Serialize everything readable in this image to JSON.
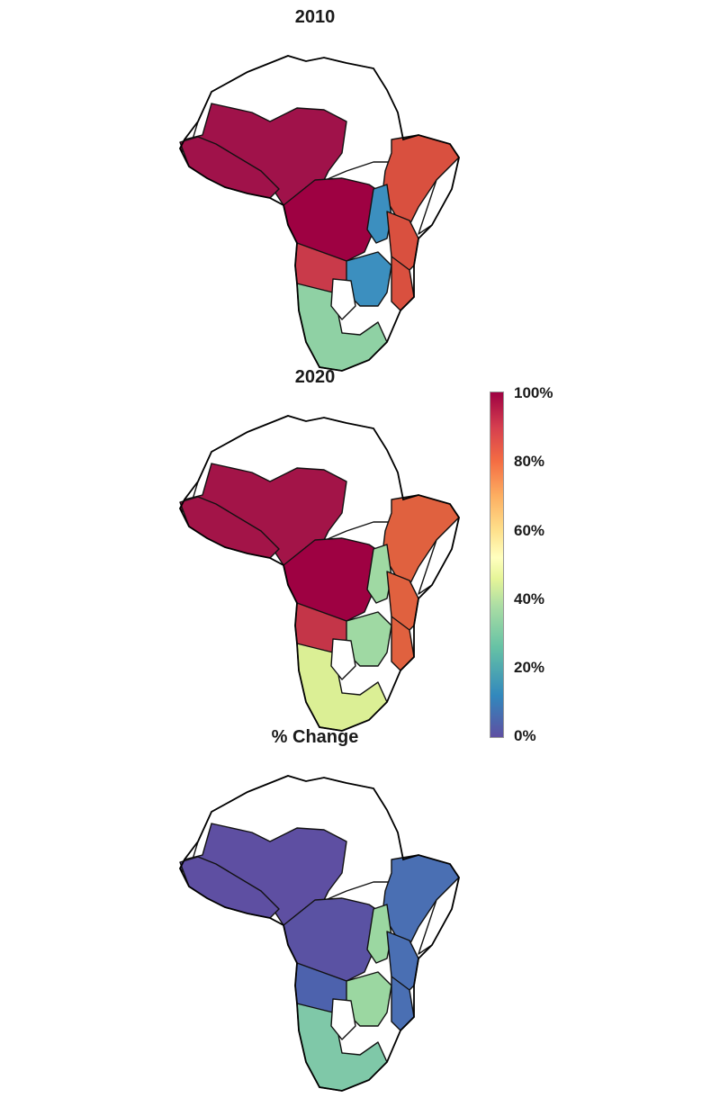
{
  "panels": [
    {
      "title": "2010",
      "fill_scheme": "2010"
    },
    {
      "title": "2020",
      "fill_scheme": "2020"
    },
    {
      "title": "% Change",
      "fill_scheme": "change"
    }
  ],
  "colorbar": {
    "ticks": [
      "100%",
      "80%",
      "60%",
      "40%",
      "20%",
      "0%"
    ],
    "colors": [
      "#5e4fa2",
      "#3288bd",
      "#66c2a5",
      "#abdda4",
      "#e6f598",
      "#ffffbf",
      "#fee08b",
      "#fdae61",
      "#f46d43",
      "#d53e4f",
      "#9e0142"
    ]
  },
  "region_colors": {
    "2010": {
      "north": "#ffffff",
      "west_sahel": "#a0124a",
      "central": "#9e0142",
      "east": "#d9503f",
      "great_lakes": "#3c8fbf",
      "south_central": "#c93a4a",
      "southern": "#8fd1a4",
      "botswana": "#ffffff"
    },
    "2020": {
      "north": "#ffffff",
      "west_sahel": "#a31448",
      "central": "#9e0142",
      "east": "#e0613f",
      "great_lakes": "#9fd9a3",
      "south_central": "#c43548",
      "southern": "#dbef95",
      "botswana": "#ffffff"
    },
    "change": {
      "north": "#ffffff",
      "west_sahel": "#5e4fa2",
      "central": "#5a52a3",
      "east": "#4a6fb3",
      "great_lakes": "#9bd7a1",
      "south_central": "#4d62ad",
      "southern": "#7fc8a8",
      "botswana": "#ffffff"
    }
  }
}
